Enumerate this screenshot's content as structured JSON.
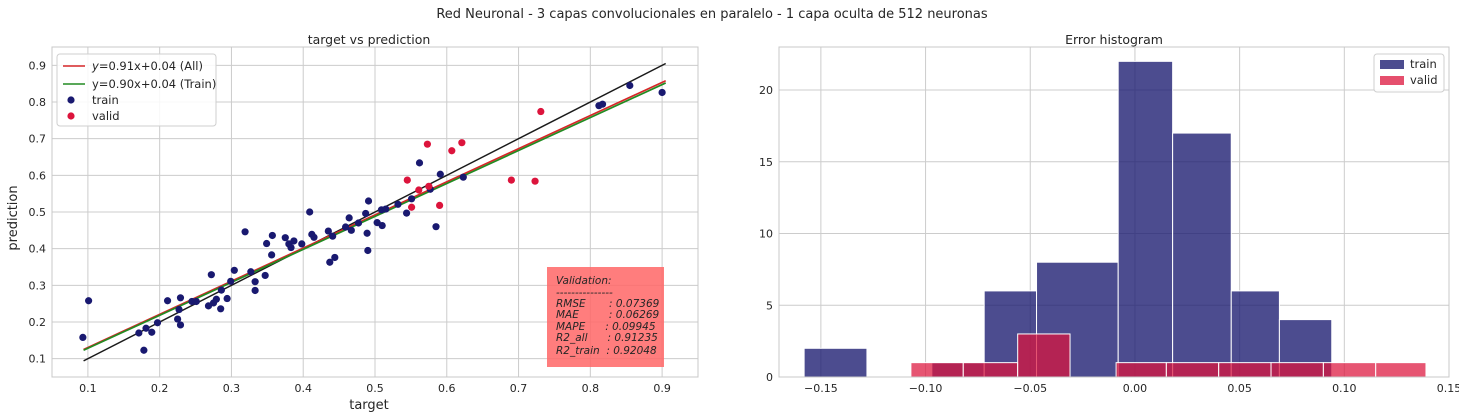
{
  "suptitle": "Red Neuronal - 3 capas convolucionales en paralelo - 1 capa oculta de 512 neuronas",
  "colors": {
    "train": "#191970",
    "valid": "#dc143c",
    "fit_all": "#d62728",
    "fit_train": "#228b22",
    "identity": "#1a1a1a",
    "metrics_box": "#ff6666",
    "grid": "#cccccc",
    "frame": "#c8c8c8"
  },
  "chart_data": [
    {
      "type": "scatter",
      "title": "target vs prediction",
      "xlabel": "target",
      "ylabel": "prediction",
      "xlim": [
        0.05,
        0.95
      ],
      "ylim": [
        0.05,
        0.95
      ],
      "xticks": [
        "0.1",
        "0.2",
        "0.3",
        "0.4",
        "0.5",
        "0.6",
        "0.7",
        "0.8",
        "0.9"
      ],
      "yticks": [
        "0.1",
        "0.2",
        "0.3",
        "0.4",
        "0.5",
        "0.6",
        "0.7",
        "0.8",
        "0.9"
      ],
      "grid": true,
      "legend_position": "top-left",
      "lines": [
        {
          "name": "$y$=0.91x+0.04 (All)",
          "label_italic_part": "y",
          "label_rest": "=0.91x+0.04 (All)",
          "x": [
            0.094,
            0.905
          ],
          "y": [
            0.125,
            0.858
          ],
          "color_key": "fit_all"
        },
        {
          "name": "y=0.90x+0.04 (Train)",
          "label_italic_part": "",
          "label_rest": "y=0.90x+0.04 (Train)",
          "x": [
            0.094,
            0.905
          ],
          "y": [
            0.123,
            0.852
          ],
          "color_key": "fit_train"
        },
        {
          "name": "",
          "x": [
            0.094,
            0.905
          ],
          "y": [
            0.094,
            0.905
          ],
          "color_key": "identity"
        }
      ],
      "series": [
        {
          "name": "train",
          "color_key": "train",
          "points": [
            [
              0.093,
              0.158
            ],
            [
              0.101,
              0.258
            ],
            [
              0.171,
              0.17
            ],
            [
              0.178,
              0.123
            ],
            [
              0.181,
              0.183
            ],
            [
              0.189,
              0.172
            ],
            [
              0.197,
              0.198
            ],
            [
              0.211,
              0.258
            ],
            [
              0.225,
              0.208
            ],
            [
              0.227,
              0.234
            ],
            [
              0.229,
              0.192
            ],
            [
              0.229,
              0.266
            ],
            [
              0.245,
              0.256
            ],
            [
              0.251,
              0.256
            ],
            [
              0.268,
              0.244
            ],
            [
              0.272,
              0.329
            ],
            [
              0.275,
              0.252
            ],
            [
              0.279,
              0.262
            ],
            [
              0.285,
              0.236
            ],
            [
              0.286,
              0.287
            ],
            [
              0.294,
              0.264
            ],
            [
              0.299,
              0.311
            ],
            [
              0.304,
              0.341
            ],
            [
              0.319,
              0.446
            ],
            [
              0.327,
              0.337
            ],
            [
              0.333,
              0.286
            ],
            [
              0.333,
              0.31
            ],
            [
              0.347,
              0.327
            ],
            [
              0.349,
              0.414
            ],
            [
              0.356,
              0.383
            ],
            [
              0.357,
              0.436
            ],
            [
              0.375,
              0.43
            ],
            [
              0.38,
              0.413
            ],
            [
              0.383,
              0.403
            ],
            [
              0.387,
              0.421
            ],
            [
              0.398,
              0.413
            ],
            [
              0.409,
              0.5
            ],
            [
              0.412,
              0.439
            ],
            [
              0.415,
              0.431
            ],
            [
              0.435,
              0.448
            ],
            [
              0.437,
              0.363
            ],
            [
              0.441,
              0.434
            ],
            [
              0.444,
              0.376
            ],
            [
              0.459,
              0.459
            ],
            [
              0.464,
              0.484
            ],
            [
              0.467,
              0.45
            ],
            [
              0.477,
              0.47
            ],
            [
              0.487,
              0.496
            ],
            [
              0.489,
              0.442
            ],
            [
              0.49,
              0.395
            ],
            [
              0.491,
              0.53
            ],
            [
              0.503,
              0.471
            ],
            [
              0.509,
              0.506
            ],
            [
              0.51,
              0.463
            ],
            [
              0.515,
              0.508
            ],
            [
              0.532,
              0.521
            ],
            [
              0.544,
              0.497
            ],
            [
              0.551,
              0.536
            ],
            [
              0.562,
              0.634
            ],
            [
              0.577,
              0.562
            ],
            [
              0.585,
              0.46
            ],
            [
              0.591,
              0.603
            ],
            [
              0.623,
              0.595
            ],
            [
              0.812,
              0.79
            ],
            [
              0.817,
              0.794
            ],
            [
              0.855,
              0.845
            ],
            [
              0.9,
              0.826
            ]
          ]
        },
        {
          "name": "valid",
          "color_key": "valid",
          "points": [
            [
              0.545,
              0.587
            ],
            [
              0.551,
              0.513
            ],
            [
              0.561,
              0.56
            ],
            [
              0.573,
              0.685
            ],
            [
              0.575,
              0.57
            ],
            [
              0.59,
              0.518
            ],
            [
              0.607,
              0.667
            ],
            [
              0.621,
              0.689
            ],
            [
              0.69,
              0.587
            ],
            [
              0.723,
              0.584
            ],
            [
              0.731,
              0.774
            ]
          ]
        }
      ],
      "metrics_box_lines": [
        "Validation:",
        "---------------",
        "RMSE       : 0.07369",
        "MAE         : 0.06269",
        "MAPE      : 0.09945",
        "R2_all      : 0.91235",
        "R2_train  : 0.92048"
      ]
    },
    {
      "type": "histogram",
      "title": "Error histogram",
      "xlim": [
        -0.17,
        0.15
      ],
      "ylim": [
        0,
        23
      ],
      "xticks": [
        "−0.15",
        "−0.10",
        "−0.05",
        "0.00",
        "0.05",
        "0.10",
        "0.15"
      ],
      "xtick_values": [
        -0.15,
        -0.1,
        -0.05,
        0.0,
        0.05,
        0.1,
        0.15
      ],
      "yticks": [
        "0",
        "5",
        "10",
        "15",
        "20"
      ],
      "ytick_values": [
        0,
        5,
        10,
        15,
        20
      ],
      "grid": true,
      "legend_position": "top-right",
      "series": [
        {
          "name": "train",
          "color_key": "train",
          "bins": [
            [
              -0.158,
              -0.128,
              2
            ],
            [
              -0.128,
              -0.097,
              0
            ],
            [
              -0.097,
              -0.072,
              1
            ],
            [
              -0.072,
              -0.047,
              6
            ],
            [
              -0.047,
              -0.008,
              8
            ],
            [
              -0.008,
              0.018,
              22
            ],
            [
              0.018,
              0.046,
              17
            ],
            [
              0.046,
              0.069,
              6
            ],
            [
              0.069,
              0.094,
              4
            ]
          ]
        },
        {
          "name": "valid",
          "color_key": "valid",
          "bins": [
            [
              -0.107,
              -0.082,
              1
            ],
            [
              -0.082,
              -0.056,
              1
            ],
            [
              -0.056,
              -0.031,
              3
            ],
            [
              -0.031,
              -0.009,
              0
            ],
            [
              -0.009,
              0.015,
              1
            ],
            [
              0.015,
              0.04,
              1
            ],
            [
              0.04,
              0.065,
              1
            ],
            [
              0.065,
              0.09,
              1
            ],
            [
              0.09,
              0.115,
              1
            ],
            [
              0.115,
              0.139,
              1
            ]
          ]
        }
      ]
    }
  ]
}
